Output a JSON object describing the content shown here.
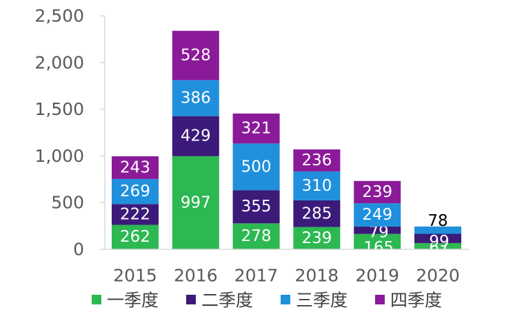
{
  "chart_data": {
    "type": "bar",
    "stacked": true,
    "categories": [
      "2015",
      "2016",
      "2017",
      "2018",
      "2019",
      "2020"
    ],
    "series": [
      {
        "name": "一季度",
        "color": "#2db852",
        "values": [
          262,
          997,
          278,
          239,
          165,
          67
        ]
      },
      {
        "name": "二季度",
        "color": "#3b1a7a",
        "values": [
          222,
          429,
          355,
          285,
          79,
          99
        ]
      },
      {
        "name": "三季度",
        "color": "#2090dd",
        "values": [
          269,
          386,
          500,
          310,
          249,
          78
        ]
      },
      {
        "name": "四季度",
        "color": "#8b1a99",
        "values": [
          243,
          528,
          321,
          236,
          239,
          0
        ]
      }
    ],
    "yticks": [
      "0",
      "500",
      "1,000",
      "1,500",
      "2,000",
      "2,500"
    ],
    "ylim": [
      0,
      2500
    ],
    "grid": false,
    "legend_position": "bottom"
  }
}
